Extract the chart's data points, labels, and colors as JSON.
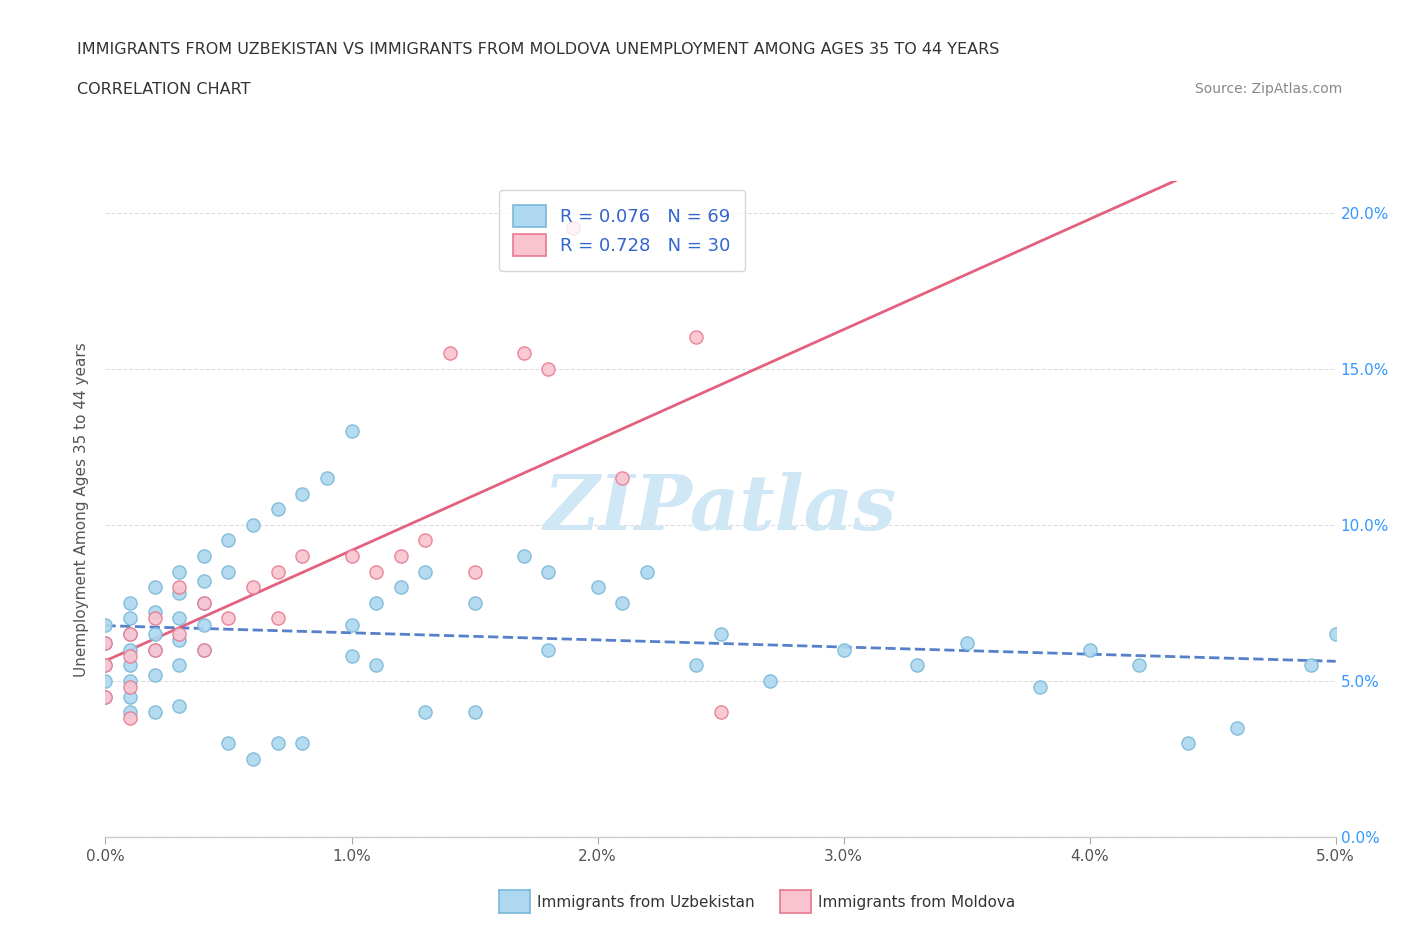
{
  "title_line1": "IMMIGRANTS FROM UZBEKISTAN VS IMMIGRANTS FROM MOLDOVA UNEMPLOYMENT AMONG AGES 35 TO 44 YEARS",
  "title_line2": "CORRELATION CHART",
  "source_text": "Source: ZipAtlas.com",
  "ylabel": "Unemployment Among Ages 35 to 44 years",
  "xlim": [
    0.0,
    0.05
  ],
  "ylim": [
    0.0,
    0.21
  ],
  "uzbekistan_color": "#add8f0",
  "uzbekistan_edge": "#7ab8d9",
  "moldova_color": "#f9c4d0",
  "moldova_edge": "#e87a90",
  "trend_uzbekistan_color": "#4472c4",
  "trend_moldova_color": "#e05070",
  "trend_uzbekistan_dash": true,
  "R_uzbekistan": 0.076,
  "N_uzbekistan": 69,
  "R_moldova": 0.728,
  "N_moldova": 30,
  "uzbekistan_x": [
    0.0,
    0.0,
    0.0,
    0.0,
    0.0,
    0.001,
    0.001,
    0.001,
    0.001,
    0.001,
    0.001,
    0.001,
    0.001,
    0.002,
    0.002,
    0.002,
    0.002,
    0.002,
    0.002,
    0.003,
    0.003,
    0.003,
    0.003,
    0.003,
    0.003,
    0.004,
    0.004,
    0.004,
    0.004,
    0.004,
    0.005,
    0.005,
    0.005,
    0.006,
    0.006,
    0.007,
    0.007,
    0.008,
    0.008,
    0.009,
    0.01,
    0.01,
    0.01,
    0.011,
    0.011,
    0.012,
    0.013,
    0.013,
    0.015,
    0.015,
    0.017,
    0.018,
    0.018,
    0.02,
    0.021,
    0.022,
    0.024,
    0.025,
    0.027,
    0.03,
    0.033,
    0.035,
    0.038,
    0.04,
    0.042,
    0.044,
    0.046,
    0.049,
    0.05
  ],
  "uzbekistan_y": [
    0.062,
    0.068,
    0.055,
    0.05,
    0.045,
    0.075,
    0.07,
    0.065,
    0.06,
    0.055,
    0.05,
    0.045,
    0.04,
    0.08,
    0.072,
    0.065,
    0.06,
    0.052,
    0.04,
    0.085,
    0.078,
    0.07,
    0.063,
    0.055,
    0.042,
    0.09,
    0.082,
    0.075,
    0.068,
    0.06,
    0.095,
    0.085,
    0.03,
    0.1,
    0.025,
    0.105,
    0.03,
    0.11,
    0.03,
    0.115,
    0.13,
    0.068,
    0.058,
    0.075,
    0.055,
    0.08,
    0.085,
    0.04,
    0.075,
    0.04,
    0.09,
    0.085,
    0.06,
    0.08,
    0.075,
    0.085,
    0.055,
    0.065,
    0.05,
    0.06,
    0.055,
    0.062,
    0.048,
    0.06,
    0.055,
    0.03,
    0.035,
    0.055,
    0.065
  ],
  "moldova_x": [
    0.0,
    0.0,
    0.0,
    0.001,
    0.001,
    0.001,
    0.001,
    0.002,
    0.002,
    0.003,
    0.003,
    0.004,
    0.004,
    0.005,
    0.006,
    0.007,
    0.007,
    0.008,
    0.01,
    0.011,
    0.012,
    0.013,
    0.014,
    0.015,
    0.017,
    0.018,
    0.019,
    0.021,
    0.024,
    0.025
  ],
  "moldova_y": [
    0.062,
    0.055,
    0.045,
    0.065,
    0.058,
    0.048,
    0.038,
    0.07,
    0.06,
    0.08,
    0.065,
    0.075,
    0.06,
    0.07,
    0.08,
    0.085,
    0.07,
    0.09,
    0.09,
    0.085,
    0.09,
    0.095,
    0.155,
    0.085,
    0.155,
    0.15,
    0.195,
    0.115,
    0.16,
    0.04
  ],
  "watermark": "ZIPatlas",
  "background_color": "#ffffff",
  "grid_color": "#dddddd",
  "ytick_color": "#3399ff",
  "xtick_color": "#555555"
}
